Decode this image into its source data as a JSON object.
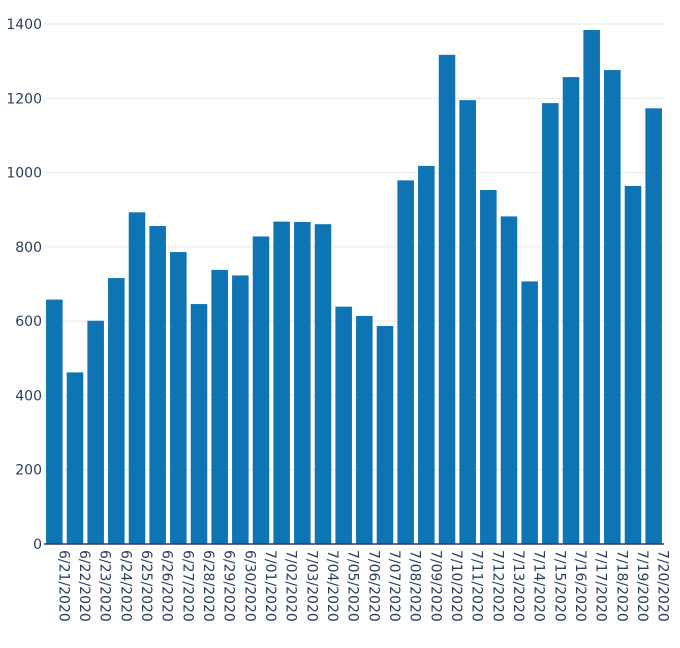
{
  "chart_data": {
    "type": "bar",
    "categories": [
      "6/21/2020",
      "6/22/2020",
      "6/23/2020",
      "6/24/2020",
      "6/25/2020",
      "6/26/2020",
      "6/27/2020",
      "6/28/2020",
      "6/29/2020",
      "6/30/2020",
      "7/01/2020",
      "7/02/2020",
      "7/03/2020",
      "7/04/2020",
      "7/05/2020",
      "7/06/2020",
      "7/07/2020",
      "7/08/2020",
      "7/09/2020",
      "7/10/2020",
      "7/11/2020",
      "7/12/2020",
      "7/13/2020",
      "7/14/2020",
      "7/15/2020",
      "7/16/2020",
      "7/17/2020",
      "7/18/2020",
      "7/19/2020",
      "7/20/2020"
    ],
    "values": [
      658,
      462,
      601,
      716,
      893,
      856,
      786,
      646,
      738,
      723,
      828,
      868,
      867,
      861,
      639,
      614,
      587,
      979,
      1018,
      1317,
      1195,
      953,
      882,
      707,
      1187,
      1257,
      1384,
      1276,
      964,
      1173
    ],
    "ylim": [
      0,
      1400
    ],
    "yticks": [
      0,
      200,
      400,
      600,
      800,
      1000,
      1200,
      1400
    ],
    "grid": true,
    "bar_color": "#0e74b4",
    "title": "",
    "xlabel": "",
    "ylabel": ""
  }
}
